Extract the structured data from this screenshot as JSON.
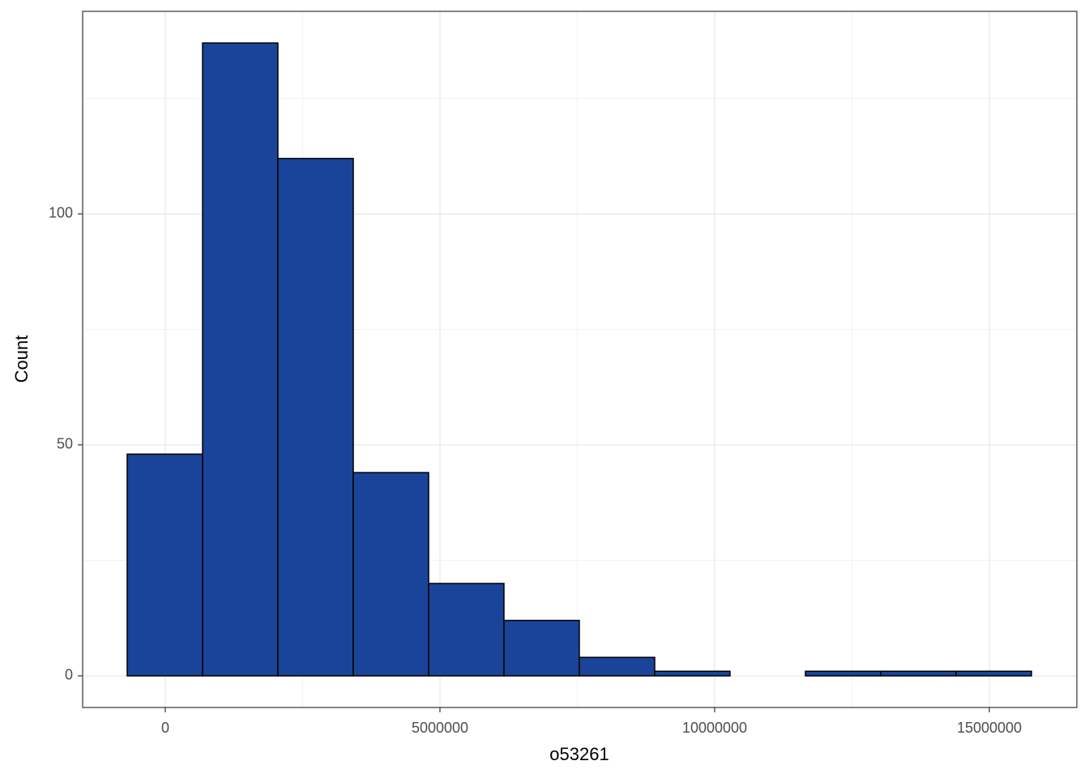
{
  "chart_data": {
    "type": "histogram",
    "x_label": "o53261",
    "y_label": "Count",
    "bins": [
      -693000,
      679000,
      2050000,
      3422000,
      4794000,
      6165000,
      7537000,
      8909000,
      10280000,
      11652000,
      13024000,
      14395000,
      15767000
    ],
    "counts": [
      48,
      137,
      112,
      44,
      20,
      12,
      4,
      1,
      0,
      1,
      1,
      1
    ],
    "color": "#1a4499",
    "xlim": [
      -1504000,
      16593000
    ],
    "xticks": [
      0,
      5000000,
      10000000,
      15000000
    ],
    "ylim": [
      -6.85,
      143.85
    ],
    "yticks": [
      0,
      50,
      100
    ],
    "grid": true
  }
}
